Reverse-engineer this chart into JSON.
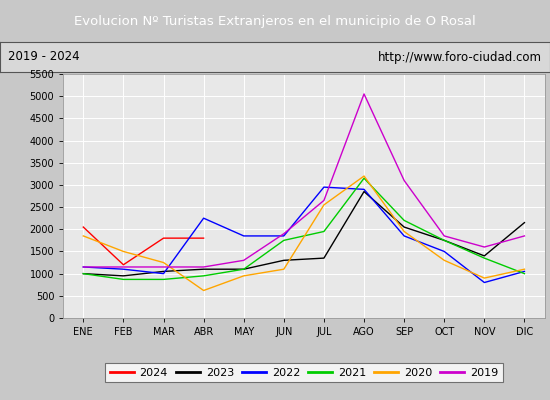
{
  "title": "Evolucion Nº Turistas Extranjeros en el municipio de O Rosal",
  "subtitle_left": "2019 - 2024",
  "subtitle_right": "http://www.foro-ciudad.com",
  "title_bg_color": "#4472c4",
  "title_text_color": "#ffffff",
  "months": [
    "ENE",
    "FEB",
    "MAR",
    "ABR",
    "MAY",
    "JUN",
    "JUL",
    "AGO",
    "SEP",
    "OCT",
    "NOV",
    "DIC"
  ],
  "ylim": [
    0,
    5500
  ],
  "yticks": [
    0,
    500,
    1000,
    1500,
    2000,
    2500,
    3000,
    3500,
    4000,
    4500,
    5000,
    5500
  ],
  "series": {
    "2024": {
      "color": "#ff0000",
      "values": [
        2050,
        1200,
        1800,
        1800,
        null,
        null,
        null,
        null,
        null,
        null,
        null,
        null
      ]
    },
    "2023": {
      "color": "#000000",
      "values": [
        1000,
        950,
        1050,
        1100,
        1100,
        1300,
        1350,
        2850,
        2050,
        1750,
        1400,
        2150
      ]
    },
    "2022": {
      "color": "#0000ff",
      "values": [
        1150,
        1100,
        1000,
        2250,
        1850,
        1850,
        2950,
        2900,
        1850,
        1500,
        800,
        1050
      ]
    },
    "2021": {
      "color": "#00cc00",
      "values": [
        1000,
        870,
        870,
        950,
        1100,
        1750,
        1950,
        3150,
        2200,
        1750,
        1350,
        1000
      ]
    },
    "2020": {
      "color": "#ffa500",
      "values": [
        1850,
        1500,
        1250,
        620,
        950,
        1100,
        2550,
        3200,
        1950,
        1300,
        900,
        1100
      ]
    },
    "2019": {
      "color": "#cc00cc",
      "values": [
        1150,
        1150,
        1150,
        1150,
        1300,
        1900,
        2650,
        5050,
        3100,
        1850,
        1600,
        1850
      ]
    }
  },
  "legend_order": [
    "2024",
    "2023",
    "2022",
    "2021",
    "2020",
    "2019"
  ],
  "outer_bg_color": "#c8c8c8",
  "plot_bg_color": "#e8e8e8",
  "grid_color": "#ffffff",
  "subtitle_bg_color": "#d8d8d8"
}
